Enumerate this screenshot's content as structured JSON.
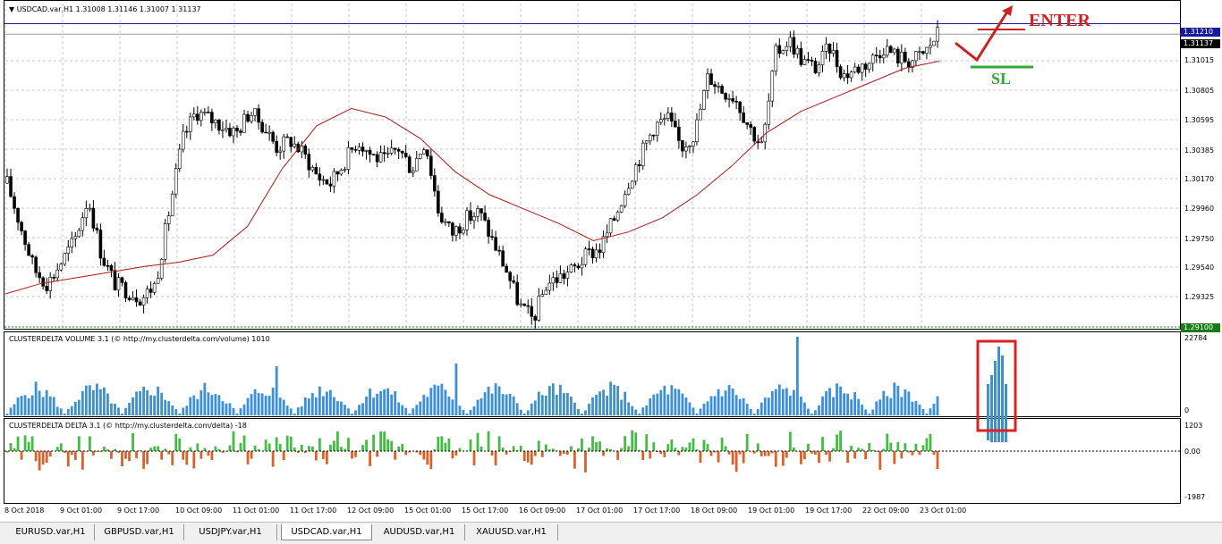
{
  "window": {
    "symbol_header": "USDCAD.var,H1  1.31008 1.31146 1.31007 1.31137"
  },
  "panes": {
    "volume_label": "CLUSTERDELTA VOLUME 3.1 (© http://my.clusterdelta.com/volume) 1010",
    "delta_label": "CLUSTERDELTA DELTA 3.1 (© http://my.clusterdelta.com/delta) -18"
  },
  "annotations": {
    "enter": "ENTER",
    "sl": "SL",
    "enter_color": "#cc2222",
    "sl_color": "#33aa33"
  },
  "price_tags": {
    "blue_line": "1.31210",
    "current": "1.31137",
    "green_line": "1.29100"
  },
  "price_axis": [
    "1.31015",
    "1.30805",
    "1.30595",
    "1.30385",
    "1.30170",
    "1.29960",
    "1.29750",
    "1.29540",
    "1.29325"
  ],
  "volume_axis": {
    "top": "22784",
    "bottom": "0"
  },
  "delta_axis": {
    "top": "1203",
    "mid": "0.00",
    "bottom": "-1987"
  },
  "time_axis": [
    "8 Oct 2018",
    "9 Oct 01:00",
    "9 Oct 17:00",
    "10 Oct 09:00",
    "11 Oct 01:00",
    "11 Oct 17:00",
    "12 Oct 09:00",
    "15 Oct 01:00",
    "15 Oct 17:00",
    "16 Oct 09:00",
    "17 Oct 01:00",
    "17 Oct 17:00",
    "18 Oct 09:00",
    "19 Oct 01:00",
    "19 Oct 17:00",
    "22 Oct 09:00",
    "23 Oct 01:00"
  ],
  "tabs": [
    "EURUSD.var,H1",
    "GBPUSD.var,H1",
    "USDJPY.var,H1",
    "USDCAD.var,H1",
    "AUDUSD.var,H1",
    "XAUUSD.var,H1"
  ],
  "active_tab": "USDCAD.var,H1",
  "colors": {
    "volume": "#3d8fd6",
    "delta_pos": "#44bb44",
    "delta_neg": "#d8622a",
    "ma": "#b01818",
    "candle": "#000000"
  },
  "chart_data": {
    "type": "candlestick",
    "symbol": "USDCAD.var",
    "timeframe": "H1",
    "ylim": [
      1.291,
      1.3135
    ],
    "close_path": [
      1.301,
      1.298,
      1.295,
      1.294,
      1.2955,
      1.297,
      1.3,
      1.296,
      1.294,
      1.2935,
      1.293,
      1.294,
      1.299,
      1.304,
      1.306,
      1.3055,
      1.305,
      1.3045,
      1.306,
      1.305,
      1.3035,
      1.304,
      1.303,
      1.3015,
      1.301,
      1.3025,
      1.304,
      1.303,
      1.3025,
      1.3035,
      1.302,
      1.304,
      1.299,
      1.2975,
      1.2985,
      1.299,
      1.297,
      1.295,
      1.2925,
      1.2915,
      1.294,
      1.2945,
      1.295,
      1.296,
      1.2965,
      1.2985,
      1.301,
      1.303,
      1.305,
      1.3055,
      1.3035,
      1.3045,
      1.3085,
      1.3075,
      1.307,
      1.305,
      1.3035,
      1.31,
      1.311,
      1.3095,
      1.309,
      1.3105,
      1.3085,
      1.309,
      1.3095,
      1.3105,
      1.3098,
      1.3095,
      1.31,
      1.3114
    ],
    "ma_path": [
      1.2933,
      1.294,
      1.2944,
      1.2948,
      1.2952,
      1.2955,
      1.296,
      1.298,
      1.302,
      1.305,
      1.3062,
      1.3056,
      1.3041,
      1.3018,
      1.3002,
      1.2992,
      1.2982,
      1.297,
      1.2976,
      1.2986,
      1.3002,
      1.3022,
      1.3045,
      1.306,
      1.307,
      1.308,
      1.309,
      1.3095
    ]
  }
}
